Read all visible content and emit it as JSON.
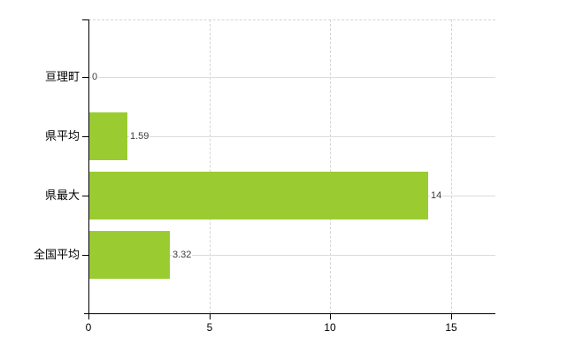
{
  "chart_data": {
    "type": "bar",
    "orientation": "horizontal",
    "title": "",
    "xlabel": "",
    "ylabel": "",
    "categories": [
      "亘理町",
      "県平均",
      "県最大",
      "全国平均"
    ],
    "values": [
      0,
      1.59,
      14,
      3.32
    ],
    "value_labels": [
      "0",
      "1.59",
      "14",
      "3.32"
    ],
    "x_ticks": [
      0,
      5,
      10,
      15
    ],
    "x_tick_labels": [
      "0",
      "5",
      "10",
      "15"
    ],
    "xlim": [
      0,
      16.8
    ],
    "legend": "none",
    "grid": "vertical dashed gridlines at x ticks, solid light horizontal line at each category center, dashed top border",
    "colors": {
      "bar": "#9acc32",
      "axis": "#000000",
      "horizontal_gridline": "#dcdcdc",
      "vertical_gridline": "#d4d4d4",
      "category_label": "#000000",
      "value_label": "#3c3c3c",
      "background": "#ffffff"
    }
  }
}
